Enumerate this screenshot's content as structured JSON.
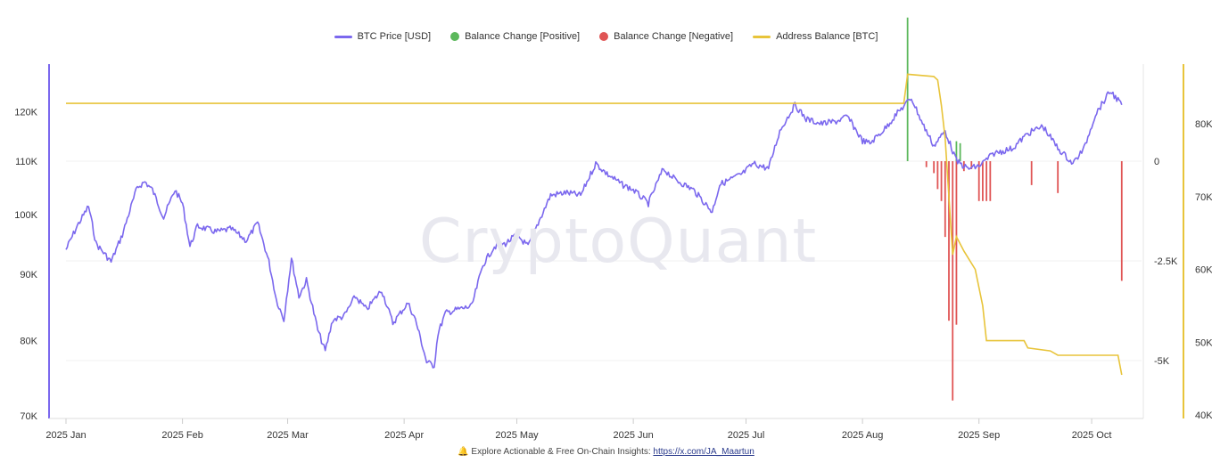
{
  "watermark": "CryptoQuant",
  "legend": [
    {
      "label": "BTC Price [USD]",
      "color": "#7b68ee",
      "kind": "line"
    },
    {
      "label": "Balance Change [Positive]",
      "color": "#5cb85c",
      "kind": "dot"
    },
    {
      "label": "Balance Change [Negative]",
      "color": "#e05555",
      "kind": "dot"
    },
    {
      "label": "Address Balance [BTC]",
      "color": "#e8c43a",
      "kind": "line"
    }
  ],
  "footer": {
    "icon": "bell-icon",
    "text": "Explore Actionable & Free On-Chain Insights:",
    "link": "https://x.com/JA_Maartun"
  },
  "chart_data": {
    "type": "line",
    "x_ticks": [
      "2025 Jan",
      "2025 Feb",
      "2025 Mar",
      "2025 Apr",
      "2025 May",
      "2025 Jun",
      "2025 Jul",
      "2025 Aug",
      "2025 Sep",
      "2025 Oct"
    ],
    "x_range": [
      "2025-01-01",
      "2025-10-10"
    ],
    "axes": {
      "price": {
        "label": "",
        "scale": "log",
        "range": [
          70000,
          130000
        ],
        "ticks": [
          {
            "v": 70000,
            "t": "70K"
          },
          {
            "v": 80000,
            "t": "80K"
          },
          {
            "v": 90000,
            "t": "90K"
          },
          {
            "v": 100000,
            "t": "100K"
          },
          {
            "v": 110000,
            "t": "110K"
          },
          {
            "v": 120000,
            "t": "120K"
          }
        ]
      },
      "change": {
        "label": "",
        "range": [
          -7500,
          4800
        ],
        "ticks": [
          {
            "v": 0,
            "t": "0"
          },
          {
            "v": -2500,
            "t": "-2.5K"
          },
          {
            "v": -5000,
            "t": "-5K"
          }
        ]
      },
      "balance": {
        "label": "",
        "range": [
          40000,
          87000
        ],
        "ticks": [
          {
            "v": 40000,
            "t": "40K"
          },
          {
            "v": 50000,
            "t": "50K"
          },
          {
            "v": 60000,
            "t": "60K"
          },
          {
            "v": 70000,
            "t": "70K"
          },
          {
            "v": 80000,
            "t": "80K"
          }
        ]
      }
    },
    "series": [
      {
        "name": "BTC Price [USD]",
        "axis": "price",
        "color": "#7b68ee",
        "points": [
          [
            "2025-01-01",
            94000
          ],
          [
            "2025-01-04",
            98000
          ],
          [
            "2025-01-07",
            101500
          ],
          [
            "2025-01-09",
            95000
          ],
          [
            "2025-01-13",
            92000
          ],
          [
            "2025-01-16",
            96500
          ],
          [
            "2025-01-20",
            105000
          ],
          [
            "2025-01-22",
            106000
          ],
          [
            "2025-01-24",
            104500
          ],
          [
            "2025-01-27",
            99500
          ],
          [
            "2025-01-30",
            104500
          ],
          [
            "2025-02-01",
            102000
          ],
          [
            "2025-02-03",
            94500
          ],
          [
            "2025-02-05",
            98000
          ],
          [
            "2025-02-10",
            97000
          ],
          [
            "2025-02-14",
            97500
          ],
          [
            "2025-02-18",
            95500
          ],
          [
            "2025-02-21",
            98500
          ],
          [
            "2025-02-24",
            92000
          ],
          [
            "2025-02-26",
            86000
          ],
          [
            "2025-02-28",
            83000
          ],
          [
            "2025-03-02",
            92500
          ],
          [
            "2025-03-04",
            86500
          ],
          [
            "2025-03-06",
            89000
          ],
          [
            "2025-03-09",
            81500
          ],
          [
            "2025-03-11",
            78500
          ],
          [
            "2025-03-13",
            83000
          ],
          [
            "2025-03-16",
            83500
          ],
          [
            "2025-03-19",
            86500
          ],
          [
            "2025-03-22",
            84500
          ],
          [
            "2025-03-26",
            87500
          ],
          [
            "2025-03-29",
            82500
          ],
          [
            "2025-04-02",
            85500
          ],
          [
            "2025-04-04",
            83000
          ],
          [
            "2025-04-07",
            77000
          ],
          [
            "2025-04-09",
            76500
          ],
          [
            "2025-04-10",
            81000
          ],
          [
            "2025-04-12",
            84000
          ],
          [
            "2025-04-15",
            84500
          ],
          [
            "2025-04-19",
            85000
          ],
          [
            "2025-04-22",
            91500
          ],
          [
            "2025-04-25",
            94500
          ],
          [
            "2025-04-28",
            95000
          ],
          [
            "2025-05-01",
            96500
          ],
          [
            "2025-05-04",
            94500
          ],
          [
            "2025-05-08",
            100500
          ],
          [
            "2025-05-10",
            103500
          ],
          [
            "2025-05-14",
            104000
          ],
          [
            "2025-05-18",
            103500
          ],
          [
            "2025-05-22",
            109500
          ],
          [
            "2025-05-25",
            107500
          ],
          [
            "2025-05-29",
            105500
          ],
          [
            "2025-06-01",
            104500
          ],
          [
            "2025-06-05",
            102000
          ],
          [
            "2025-06-09",
            108500
          ],
          [
            "2025-06-12",
            106500
          ],
          [
            "2025-06-17",
            104500
          ],
          [
            "2025-06-22",
            100500
          ],
          [
            "2025-06-24",
            105500
          ],
          [
            "2025-06-30",
            107500
          ],
          [
            "2025-07-03",
            109500
          ],
          [
            "2025-07-07",
            108500
          ],
          [
            "2025-07-10",
            116000
          ],
          [
            "2025-07-14",
            121500
          ],
          [
            "2025-07-17",
            118500
          ],
          [
            "2025-07-21",
            117500
          ],
          [
            "2025-07-25",
            118000
          ],
          [
            "2025-07-28",
            119000
          ],
          [
            "2025-08-01",
            114000
          ],
          [
            "2025-08-03",
            113500
          ],
          [
            "2025-08-07",
            116500
          ],
          [
            "2025-08-10",
            119500
          ],
          [
            "2025-08-14",
            123000
          ],
          [
            "2025-08-17",
            117500
          ],
          [
            "2025-08-20",
            113000
          ],
          [
            "2025-08-23",
            116000
          ],
          [
            "2025-08-26",
            110000
          ],
          [
            "2025-08-29",
            108500
          ],
          [
            "2025-09-01",
            109000
          ],
          [
            "2025-09-05",
            111500
          ],
          [
            "2025-09-10",
            112500
          ],
          [
            "2025-09-14",
            115500
          ],
          [
            "2025-09-18",
            117000
          ],
          [
            "2025-09-22",
            112500
          ],
          [
            "2025-09-26",
            109500
          ],
          [
            "2025-09-29",
            112500
          ],
          [
            "2025-10-02",
            119500
          ],
          [
            "2025-10-06",
            124500
          ],
          [
            "2025-10-09",
            121500
          ]
        ]
      },
      {
        "name": "Address Balance [BTC]",
        "axis": "balance",
        "color": "#e8c43a",
        "points": [
          [
            "2025-01-01",
            82800
          ],
          [
            "2025-08-12",
            82800
          ],
          [
            "2025-08-13",
            86800
          ],
          [
            "2025-08-20",
            86500
          ],
          [
            "2025-08-21",
            86000
          ],
          [
            "2025-08-22",
            82500
          ],
          [
            "2025-08-23",
            78000
          ],
          [
            "2025-08-24",
            70000
          ],
          [
            "2025-08-25",
            62000
          ],
          [
            "2025-08-26",
            64500
          ],
          [
            "2025-08-28",
            62500
          ],
          [
            "2025-08-31",
            60000
          ],
          [
            "2025-09-02",
            55000
          ],
          [
            "2025-09-03",
            50200
          ],
          [
            "2025-09-13",
            50200
          ],
          [
            "2025-09-14",
            49200
          ],
          [
            "2025-09-20",
            48800
          ],
          [
            "2025-09-22",
            48200
          ],
          [
            "2025-10-08",
            48200
          ],
          [
            "2025-10-09",
            45500
          ]
        ]
      },
      {
        "name": "Balance Change [Positive]",
        "axis": "change",
        "color": "#5cb85c",
        "kind": "bars",
        "points": [
          [
            "2025-08-13",
            3600
          ],
          [
            "2025-08-26",
            500
          ],
          [
            "2025-08-27",
            450
          ]
        ]
      },
      {
        "name": "Balance Change [Negative]",
        "axis": "change",
        "color": "#e05555",
        "kind": "bars",
        "points": [
          [
            "2025-08-18",
            -150
          ],
          [
            "2025-08-20",
            -300
          ],
          [
            "2025-08-21",
            -700
          ],
          [
            "2025-08-22",
            -1000
          ],
          [
            "2025-08-23",
            -1900
          ],
          [
            "2025-08-24",
            -4000
          ],
          [
            "2025-08-25",
            -6000
          ],
          [
            "2025-08-26",
            -4100
          ],
          [
            "2025-08-28",
            -250
          ],
          [
            "2025-08-30",
            -200
          ],
          [
            "2025-09-01",
            -1000
          ],
          [
            "2025-09-02",
            -1000
          ],
          [
            "2025-09-03",
            -1000
          ],
          [
            "2025-09-04",
            -1000
          ],
          [
            "2025-09-15",
            -600
          ],
          [
            "2025-09-22",
            -800
          ],
          [
            "2025-10-09",
            -3000
          ]
        ]
      }
    ]
  }
}
